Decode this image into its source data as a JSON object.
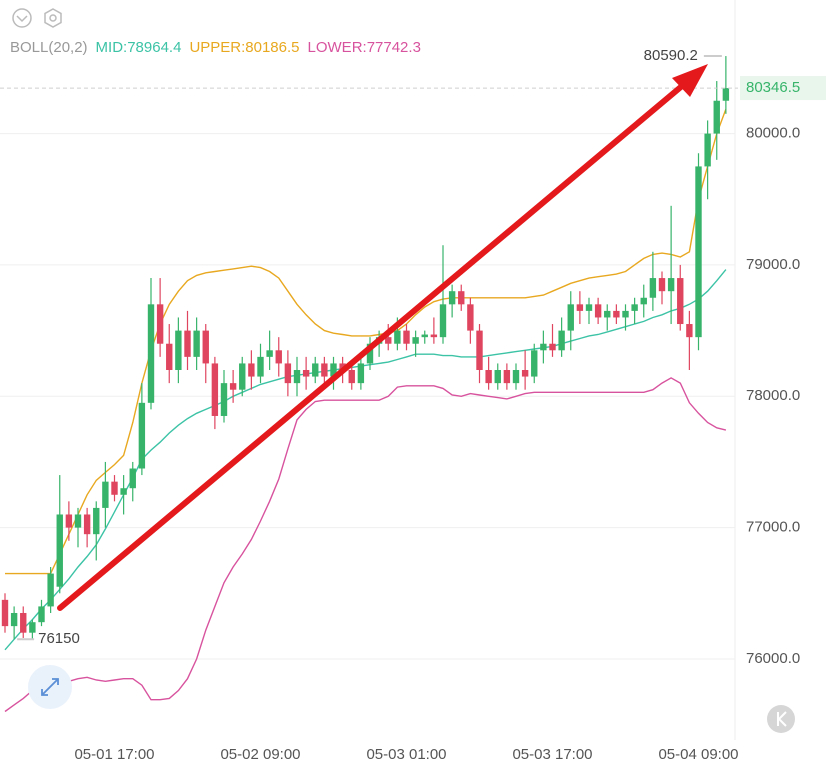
{
  "chart_data": {
    "type": "candlestick",
    "indicator": "BOLL(20,2)",
    "categories": [
      null,
      null,
      null,
      null,
      null,
      null,
      null,
      null,
      null,
      null,
      null,
      null,
      "05-01 17:00",
      null,
      null,
      null,
      null,
      null,
      null,
      null,
      null,
      null,
      null,
      null,
      null,
      null,
      null,
      null,
      "05-02 09:00",
      null,
      null,
      null,
      null,
      null,
      null,
      null,
      null,
      null,
      null,
      null,
      null,
      null,
      null,
      null,
      "05-03 01:00",
      null,
      null,
      null,
      null,
      null,
      null,
      null,
      null,
      null,
      null,
      null,
      null,
      null,
      null,
      null,
      "05-03 17:00",
      null,
      null,
      null,
      null,
      null,
      null,
      null,
      null,
      null,
      null,
      null,
      null,
      null,
      null,
      null,
      "05-04 09:00",
      null,
      null,
      null
    ],
    "ohlc": [
      [
        76450,
        76500,
        76200,
        76250
      ],
      [
        76250,
        76400,
        76150,
        76350
      ],
      [
        76350,
        76400,
        76160,
        76200
      ],
      [
        76200,
        76300,
        76155.1,
        76280
      ],
      [
        76280,
        76450,
        76250,
        76400
      ],
      [
        76400,
        76700,
        76350,
        76650
      ],
      [
        76550,
        77400,
        76500,
        77100
      ],
      [
        77100,
        77200,
        76900,
        77000
      ],
      [
        77000,
        77150,
        76850,
        77100
      ],
      [
        77100,
        77150,
        76850,
        76950
      ],
      [
        76950,
        77200,
        76750,
        77150
      ],
      [
        77150,
        77500,
        77000,
        77350
      ],
      [
        77350,
        77400,
        77200,
        77250
      ],
      [
        77250,
        77400,
        77100,
        77300
      ],
      [
        77300,
        77500,
        77200,
        77450
      ],
      [
        77450,
        78100,
        77400,
        77950
      ],
      [
        77950,
        78900,
        77900,
        78700
      ],
      [
        78700,
        78900,
        78300,
        78400
      ],
      [
        78400,
        78550,
        78100,
        78200
      ],
      [
        78200,
        78600,
        78100,
        78500
      ],
      [
        78500,
        78650,
        78200,
        78300
      ],
      [
        78300,
        78600,
        78200,
        78500
      ],
      [
        78500,
        78550,
        78100,
        78250
      ],
      [
        78250,
        78300,
        77750,
        77850
      ],
      [
        77850,
        78200,
        77800,
        78100
      ],
      [
        78100,
        78200,
        77950,
        78050
      ],
      [
        78050,
        78300,
        78000,
        78250
      ],
      [
        78250,
        78350,
        78050,
        78150
      ],
      [
        78150,
        78400,
        78100,
        78300
      ],
      [
        78300,
        78500,
        78200,
        78350
      ],
      [
        78350,
        78450,
        78150,
        78250
      ],
      [
        78250,
        78350,
        78000,
        78100
      ],
      [
        78100,
        78300,
        78000,
        78200
      ],
      [
        78200,
        78300,
        78050,
        78150
      ],
      [
        78150,
        78300,
        78100,
        78250
      ],
      [
        78250,
        78300,
        78100,
        78150
      ],
      [
        78150,
        78300,
        78050,
        78250
      ],
      [
        78250,
        78300,
        78100,
        78200
      ],
      [
        78200,
        78250,
        78050,
        78100
      ],
      [
        78100,
        78300,
        78050,
        78250
      ],
      [
        78250,
        78450,
        78200,
        78400
      ],
      [
        78400,
        78500,
        78300,
        78450
      ],
      [
        78450,
        78550,
        78350,
        78400
      ],
      [
        78400,
        78600,
        78350,
        78500
      ],
      [
        78500,
        78550,
        78350,
        78400
      ],
      [
        78400,
        78500,
        78300,
        78450
      ],
      [
        78450,
        78500,
        78400,
        78470
      ],
      [
        78470,
        78600,
        78400,
        78450
      ],
      [
        78450,
        79150,
        78400,
        78700
      ],
      [
        78700,
        78850,
        78600,
        78800
      ],
      [
        78800,
        78850,
        78650,
        78700
      ],
      [
        78700,
        78750,
        78400,
        78500
      ],
      [
        78500,
        78550,
        78100,
        78200
      ],
      [
        78200,
        78300,
        78050,
        78100
      ],
      [
        78100,
        78250,
        78050,
        78200
      ],
      [
        78200,
        78250,
        78050,
        78100
      ],
      [
        78100,
        78250,
        78050,
        78200
      ],
      [
        78200,
        78350,
        78050,
        78150
      ],
      [
        78150,
        78400,
        78100,
        78350
      ],
      [
        78350,
        78500,
        78250,
        78400
      ],
      [
        78400,
        78550,
        78300,
        78350
      ],
      [
        78350,
        78600,
        78300,
        78500
      ],
      [
        78500,
        78800,
        78350,
        78700
      ],
      [
        78700,
        78800,
        78550,
        78650
      ],
      [
        78650,
        78750,
        78550,
        78700
      ],
      [
        78700,
        78750,
        78550,
        78600
      ],
      [
        78600,
        78700,
        78500,
        78650
      ],
      [
        78650,
        78700,
        78550,
        78600
      ],
      [
        78600,
        78700,
        78500,
        78650
      ],
      [
        78650,
        78750,
        78550,
        78700
      ],
      [
        78700,
        78850,
        78600,
        78750
      ],
      [
        78750,
        79100,
        78650,
        78900
      ],
      [
        78900,
        78950,
        78700,
        78800
      ],
      [
        78800,
        79450,
        78550,
        78900
      ],
      [
        78900,
        79000,
        78500,
        78550
      ],
      [
        78550,
        78650,
        78200,
        78450
      ],
      [
        78450,
        79850,
        78350,
        79750
      ],
      [
        79750,
        80100,
        79500,
        80000
      ],
      [
        80000,
        80400,
        79800,
        80250
      ],
      [
        80250,
        80590.2,
        80150,
        80346.5
      ]
    ],
    "up_color": "#37b46a",
    "down_color": "#e0455f",
    "series": [
      {
        "label": "MID:78964.4",
        "color": "#3cc3a6",
        "values": [
          76070,
          76150,
          76230,
          76300,
          76380,
          76450,
          76530,
          76610,
          76700,
          76780,
          76870,
          76990,
          77120,
          77250,
          77380,
          77520,
          77590,
          77650,
          77720,
          77780,
          77830,
          77870,
          77900,
          77930,
          77960,
          78000,
          78030,
          78060,
          78090,
          78110,
          78130,
          78150,
          78160,
          78170,
          78180,
          78190,
          78200,
          78210,
          78220,
          78230,
          78240,
          78250,
          78260,
          78280,
          78300,
          78320,
          78320,
          78320,
          78310,
          78310,
          78300,
          78300,
          78300,
          78310,
          78320,
          78330,
          78340,
          78350,
          78360,
          78370,
          78380,
          78400,
          78420,
          78440,
          78460,
          78470,
          78490,
          78510,
          78530,
          78550,
          78570,
          78600,
          78620,
          78650,
          78670,
          78700,
          78740,
          78800,
          78880,
          78964.4
        ]
      },
      {
        "label": "UPPER:80186.5",
        "color": "#e8a820",
        "values": [
          76650,
          76650,
          76650,
          76650,
          76650,
          76650,
          76800,
          76950,
          77100,
          77250,
          77360,
          77420,
          77480,
          77550,
          77800,
          78100,
          78350,
          78550,
          78700,
          78800,
          78880,
          78920,
          78940,
          78950,
          78960,
          78970,
          78980,
          78990,
          78980,
          78950,
          78900,
          78800,
          78700,
          78620,
          78550,
          78500,
          78480,
          78470,
          78460,
          78460,
          78460,
          78470,
          78480,
          78500,
          78550,
          78620,
          78680,
          78720,
          78740,
          78750,
          78750,
          78750,
          78750,
          78750,
          78750,
          78750,
          78750,
          78750,
          78760,
          78770,
          78800,
          78830,
          78860,
          78880,
          78900,
          78910,
          78920,
          78930,
          78950,
          79000,
          79050,
          79080,
          79090,
          79080,
          79060,
          79100,
          79500,
          79750,
          80000,
          80186.5
        ]
      },
      {
        "label": "LOWER:77742.3",
        "color": "#d8539e",
        "values": [
          75600,
          75650,
          75700,
          75760,
          75840,
          75910,
          75820,
          75830,
          75850,
          75860,
          75840,
          75830,
          75840,
          75850,
          75850,
          75800,
          75690,
          75690,
          75700,
          75760,
          75850,
          76000,
          76220,
          76400,
          76580,
          76700,
          76800,
          76910,
          77050,
          77200,
          77370,
          77600,
          77820,
          77900,
          77960,
          77970,
          77970,
          77970,
          77970,
          77970,
          77970,
          77970,
          78000,
          78070,
          78080,
          78080,
          78080,
          78080,
          78060,
          78010,
          78000,
          78020,
          78010,
          78000,
          77990,
          77980,
          78000,
          78020,
          78030,
          78030,
          78030,
          78030,
          78030,
          78030,
          78030,
          78030,
          78030,
          78030,
          78030,
          78030,
          78030,
          78050,
          78100,
          78140,
          78100,
          77950,
          77870,
          77800,
          77760,
          77742.3
        ]
      }
    ],
    "ylim": [
      75383,
      81017
    ],
    "yticks": [
      {
        "value": 76000,
        "label": "76000.0"
      },
      {
        "value": 77000,
        "label": "77000.0"
      },
      {
        "value": 78000,
        "label": "78000.0"
      },
      {
        "value": 79000,
        "label": "79000.0"
      },
      {
        "value": 80000,
        "label": "80000.0"
      }
    ],
    "grid": true
  }
}
